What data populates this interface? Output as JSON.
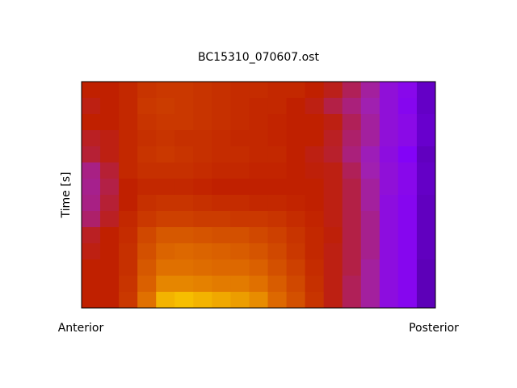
{
  "chart_data": {
    "type": "heatmap",
    "title": "BC15310_070607.ost",
    "ylabel": "Time [s]",
    "x_end_labels": [
      "Anterior",
      "Posterior"
    ],
    "zlim": [
      0,
      1
    ],
    "colormap": [
      "#3a0070",
      "#8000ff",
      "#a020b0",
      "#c02000",
      "#e07000",
      "#ffe000"
    ],
    "z": [
      [
        0.6,
        0.6,
        0.62,
        0.65,
        0.66,
        0.66,
        0.65,
        0.64,
        0.63,
        0.63,
        0.62,
        0.62,
        0.6,
        0.57,
        0.5,
        0.42,
        0.3,
        0.25,
        0.12
      ],
      [
        0.58,
        0.6,
        0.62,
        0.66,
        0.67,
        0.66,
        0.65,
        0.64,
        0.63,
        0.62,
        0.62,
        0.6,
        0.58,
        0.52,
        0.46,
        0.4,
        0.3,
        0.24,
        0.12
      ],
      [
        0.6,
        0.6,
        0.62,
        0.65,
        0.66,
        0.66,
        0.65,
        0.64,
        0.63,
        0.62,
        0.61,
        0.6,
        0.6,
        0.58,
        0.5,
        0.42,
        0.3,
        0.26,
        0.13
      ],
      [
        0.56,
        0.58,
        0.62,
        0.64,
        0.65,
        0.64,
        0.64,
        0.63,
        0.62,
        0.62,
        0.61,
        0.6,
        0.6,
        0.56,
        0.48,
        0.42,
        0.3,
        0.26,
        0.13
      ],
      [
        0.54,
        0.58,
        0.62,
        0.65,
        0.66,
        0.65,
        0.64,
        0.63,
        0.63,
        0.62,
        0.62,
        0.6,
        0.58,
        0.55,
        0.46,
        0.38,
        0.28,
        0.22,
        0.11
      ],
      [
        0.45,
        0.54,
        0.62,
        0.64,
        0.64,
        0.64,
        0.63,
        0.62,
        0.62,
        0.61,
        0.61,
        0.6,
        0.59,
        0.58,
        0.5,
        0.4,
        0.3,
        0.25,
        0.12
      ],
      [
        0.44,
        0.52,
        0.6,
        0.62,
        0.62,
        0.62,
        0.61,
        0.6,
        0.6,
        0.6,
        0.6,
        0.6,
        0.6,
        0.58,
        0.52,
        0.42,
        0.3,
        0.25,
        0.12
      ],
      [
        0.45,
        0.54,
        0.6,
        0.64,
        0.65,
        0.65,
        0.64,
        0.63,
        0.63,
        0.62,
        0.62,
        0.61,
        0.6,
        0.58,
        0.52,
        0.42,
        0.28,
        0.24,
        0.11
      ],
      [
        0.48,
        0.56,
        0.62,
        0.66,
        0.68,
        0.68,
        0.67,
        0.67,
        0.66,
        0.66,
        0.65,
        0.63,
        0.61,
        0.58,
        0.52,
        0.44,
        0.28,
        0.24,
        0.11
      ],
      [
        0.56,
        0.6,
        0.63,
        0.7,
        0.74,
        0.74,
        0.73,
        0.72,
        0.72,
        0.7,
        0.68,
        0.65,
        0.62,
        0.59,
        0.52,
        0.44,
        0.28,
        0.24,
        0.11
      ],
      [
        0.58,
        0.6,
        0.64,
        0.72,
        0.77,
        0.78,
        0.77,
        0.76,
        0.75,
        0.73,
        0.7,
        0.66,
        0.62,
        0.58,
        0.52,
        0.44,
        0.28,
        0.24,
        0.11
      ],
      [
        0.6,
        0.6,
        0.64,
        0.74,
        0.8,
        0.8,
        0.79,
        0.78,
        0.78,
        0.76,
        0.72,
        0.68,
        0.63,
        0.58,
        0.52,
        0.42,
        0.28,
        0.24,
        0.1
      ],
      [
        0.6,
        0.6,
        0.65,
        0.76,
        0.84,
        0.84,
        0.83,
        0.82,
        0.82,
        0.8,
        0.75,
        0.7,
        0.64,
        0.58,
        0.5,
        0.42,
        0.28,
        0.24,
        0.1
      ],
      [
        0.6,
        0.6,
        0.66,
        0.8,
        0.92,
        0.94,
        0.92,
        0.9,
        0.88,
        0.85,
        0.78,
        0.72,
        0.65,
        0.58,
        0.5,
        0.42,
        0.28,
        0.24,
        0.1
      ]
    ]
  }
}
